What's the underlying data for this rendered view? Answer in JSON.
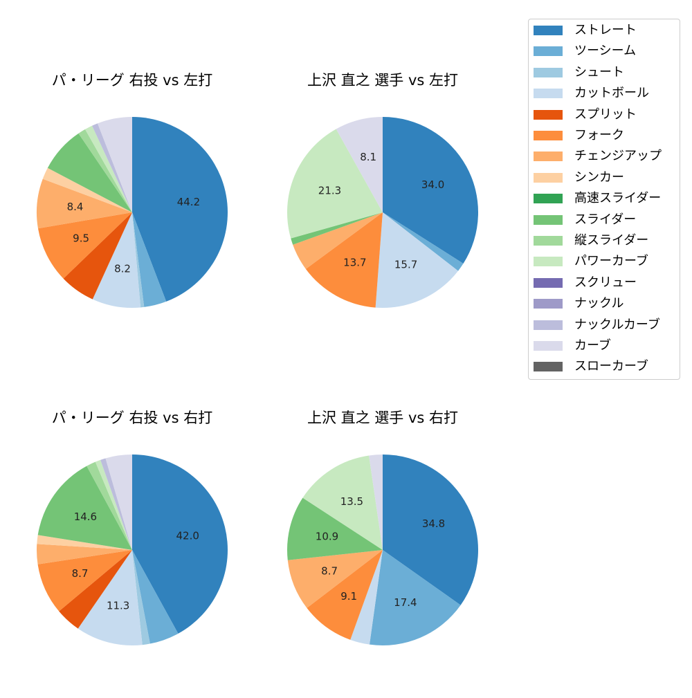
{
  "legend": {
    "items": [
      {
        "label": "ストレート",
        "color": "#3182bd"
      },
      {
        "label": "ツーシーム",
        "color": "#6baed6"
      },
      {
        "label": "シュート",
        "color": "#9ecae1"
      },
      {
        "label": "カットボール",
        "color": "#c6dbef"
      },
      {
        "label": "スプリット",
        "color": "#e6550d"
      },
      {
        "label": "フォーク",
        "color": "#fd8d3c"
      },
      {
        "label": "チェンジアップ",
        "color": "#fdae6b"
      },
      {
        "label": "シンカー",
        "color": "#fdd0a2"
      },
      {
        "label": "高速スライダー",
        "color": "#31a354"
      },
      {
        "label": "スライダー",
        "color": "#74c476"
      },
      {
        "label": "縦スライダー",
        "color": "#a1d99b"
      },
      {
        "label": "パワーカーブ",
        "color": "#c7e9c0"
      },
      {
        "label": "スクリュー",
        "color": "#756bb1"
      },
      {
        "label": "ナックル",
        "color": "#9e9ac8"
      },
      {
        "label": "ナックルカーブ",
        "color": "#bcbddc"
      },
      {
        "label": "カーブ",
        "color": "#dadaeb"
      },
      {
        "label": "スローカーブ",
        "color": "#636363"
      }
    ]
  },
  "chart_data": [
    {
      "type": "pie",
      "title": "パ・リーグ 右投 vs 左打",
      "categories": [
        "ストレート",
        "ツーシーム",
        "シュート",
        "カットボール",
        "スプリット",
        "フォーク",
        "チェンジアップ",
        "シンカー",
        "高速スライダー",
        "スライダー",
        "縦スライダー",
        "パワーカーブ",
        "スクリュー",
        "ナックル",
        "ナックルカーブ",
        "カーブ",
        "スローカーブ"
      ],
      "values": [
        44.2,
        3.8,
        0.6,
        8.2,
        6.0,
        9.5,
        8.4,
        2.0,
        0,
        7.8,
        1.3,
        1.3,
        0,
        0,
        1.0,
        5.9,
        0
      ],
      "labels_shown": [
        "44.2",
        "8.2",
        "9.5",
        "8.4"
      ],
      "start_angle": 90,
      "direction": "clockwise"
    },
    {
      "type": "pie",
      "title": "上沢 直之 選手 vs 左打",
      "categories": [
        "ストレート",
        "ツーシーム",
        "シュート",
        "カットボール",
        "スプリット",
        "フォーク",
        "チェンジアップ",
        "シンカー",
        "高速スライダー",
        "スライダー",
        "縦スライダー",
        "パワーカーブ",
        "スクリュー",
        "ナックル",
        "ナックルカーブ",
        "カーブ",
        "スローカーブ"
      ],
      "values": [
        34.0,
        1.5,
        0,
        15.7,
        0,
        13.7,
        4.6,
        0,
        0,
        1.1,
        0,
        21.3,
        0,
        0,
        0,
        8.1,
        0
      ],
      "labels_shown": [
        "34.0",
        "15.7",
        "13.7",
        "21.3",
        "8.1"
      ],
      "start_angle": 90,
      "direction": "clockwise"
    },
    {
      "type": "pie",
      "title": "パ・リーグ 右投 vs 右打",
      "categories": [
        "ストレート",
        "ツーシーム",
        "シュート",
        "カットボール",
        "スプリット",
        "フォーク",
        "チェンジアップ",
        "シンカー",
        "高速スライダー",
        "スライダー",
        "縦スライダー",
        "パワーカーブ",
        "スクリュー",
        "ナックル",
        "ナックルカーブ",
        "カーブ",
        "スローカーブ"
      ],
      "values": [
        42.0,
        5.0,
        1.3,
        11.3,
        4.3,
        8.7,
        3.4,
        1.5,
        0,
        14.6,
        1.6,
        0.9,
        0,
        0,
        0.9,
        4.5,
        0
      ],
      "labels_shown": [
        "42.0",
        "11.3",
        "8.7",
        "14.6"
      ],
      "start_angle": 90,
      "direction": "clockwise"
    },
    {
      "type": "pie",
      "title": "上沢 直之 選手 vs 右打",
      "categories": [
        "ストレート",
        "ツーシーム",
        "シュート",
        "カットボール",
        "スプリット",
        "フォーク",
        "チェンジアップ",
        "シンカー",
        "高速スライダー",
        "スライダー",
        "縦スライダー",
        "パワーカーブ",
        "スクリュー",
        "ナックル",
        "ナックルカーブ",
        "カーブ",
        "スローカーブ"
      ],
      "values": [
        34.8,
        17.4,
        0,
        3.3,
        0,
        9.1,
        8.7,
        0,
        0,
        10.9,
        0,
        13.5,
        0,
        0,
        0,
        2.3,
        0
      ],
      "labels_shown": [
        "34.8",
        "17.4",
        "9.1",
        "8.7",
        "10.9",
        "13.5"
      ],
      "start_angle": 90,
      "direction": "clockwise"
    }
  ],
  "panels": [
    {
      "title": "パ・リーグ 右投 vs 左打"
    },
    {
      "title": "上沢 直之 選手 vs 左打"
    },
    {
      "title": "パ・リーグ 右投 vs 右打"
    },
    {
      "title": "上沢 直之 選手 vs 右打"
    }
  ]
}
